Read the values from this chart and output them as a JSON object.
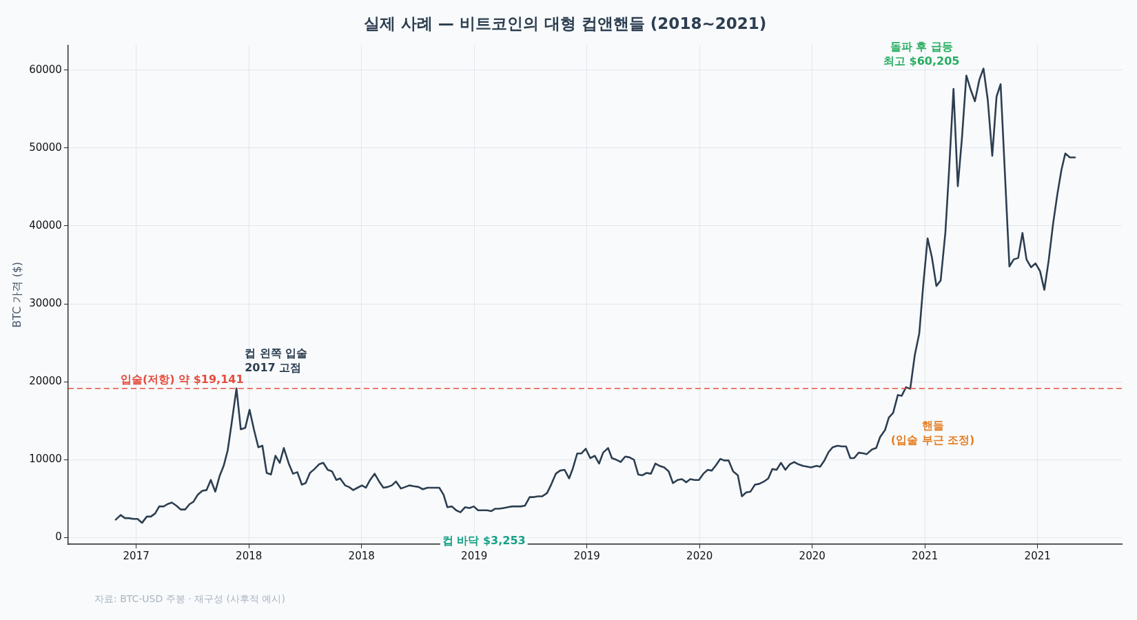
{
  "chart_data": {
    "type": "line",
    "title": "실제 사례 — 비트코인의 대형 컵앤핸들 (2018~2021)",
    "ylabel": "BTC 가격 ($)",
    "x": [
      2016.909,
      2016.931,
      2016.95,
      2016.967,
      2016.987,
      2017.006,
      2017.026,
      2017.047,
      2017.065,
      2017.084,
      2017.102,
      2017.122,
      2017.139,
      2017.158,
      2017.178,
      2017.198,
      2017.217,
      2017.237,
      2017.254,
      2017.273,
      2017.293,
      2017.312,
      2017.331,
      2017.351,
      2017.37,
      2017.388,
      2017.406,
      2017.425,
      2017.445,
      2017.464,
      2017.484,
      2017.503,
      2017.523,
      2017.542,
      2017.56,
      2017.579,
      2017.598,
      2017.618,
      2017.637,
      2017.655,
      2017.677,
      2017.696,
      2017.715,
      2017.735,
      2017.752,
      2017.771,
      2017.791,
      2017.811,
      2017.83,
      2017.85,
      2017.869,
      2017.888,
      2017.905,
      2017.927,
      2017.944,
      2017.963,
      2017.982,
      2018.002,
      2018.019,
      2018.038,
      2018.058,
      2018.078,
      2018.097,
      2018.116,
      2018.134,
      2018.153,
      2018.175,
      2018.194,
      2018.212,
      2018.231,
      2018.253,
      2018.272,
      2018.292,
      2018.308,
      2018.327,
      2018.345,
      2018.364,
      2018.381,
      2018.401,
      2018.42,
      2018.439,
      2018.459,
      2018.479,
      2018.498,
      2018.517,
      2018.537,
      2018.557,
      2018.576,
      2018.592,
      2018.61,
      2018.63,
      2018.649,
      2018.668,
      2018.688,
      2018.707,
      2018.725,
      2018.746,
      2018.764,
      2018.783,
      2018.802,
      2018.823,
      2018.843,
      2018.862,
      2018.881,
      2018.901,
      2018.921,
      2018.938,
      2018.957,
      2018.976,
      2018.995,
      2019.015,
      2019.035,
      2019.054,
      2019.072,
      2019.094,
      2019.111,
      2019.13,
      2019.15,
      2019.17,
      2019.189,
      2019.209,
      2019.228,
      2019.246,
      2019.265,
      2019.284,
      2019.304,
      2019.323,
      2019.343,
      2019.363,
      2019.382,
      2019.403,
      2019.422,
      2019.441,
      2019.459,
      2019.478,
      2019.497,
      2019.517,
      2019.536,
      2019.554,
      2019.573,
      2019.592,
      2019.61,
      2019.629,
      2019.649,
      2019.67,
      2019.688,
      2019.707,
      2019.726,
      2019.746,
      2019.765,
      2019.786,
      2019.805,
      2019.823,
      2019.842,
      2019.861,
      2019.881,
      2019.9,
      2019.92,
      2019.939,
      2019.959,
      2019.979,
      2019.995,
      2020.019,
      2020.035,
      2020.054,
      2020.073,
      2020.091,
      2020.113,
      2020.13,
      2020.15,
      2020.169,
      2020.186,
      2020.206,
      2020.23,
      2020.241,
      2020.265,
      2020.284,
      2020.301,
      2020.323,
      2020.34,
      2020.359,
      2020.38,
      2020.397,
      2020.416,
      2020.435,
      2020.455,
      2020.475,
      2020.492,
      2020.512,
      2020.531,
      2020.551,
      2020.57,
      2020.591,
      2020.607,
      2020.627,
      2020.646,
      2020.664,
      2020.684,
      2020.703,
      2020.722,
      2020.742,
      2020.76,
      2020.779,
      2020.799,
      2020.818,
      2020.836,
      2020.875,
      2020.894,
      2020.914,
      2020.933,
      2020.951,
      2020.971,
      2020.991,
      2021.011,
      2021.03,
      2021.049,
      2021.069,
      2021.088,
      2021.106,
      2021.123,
      2021.143,
      2021.166
    ],
    "series": [
      {
        "color": "#2c3e50",
        "values": [
          2300,
          2900,
          2500,
          2500,
          2400,
          2400,
          1900,
          2700,
          2700,
          3100,
          4000,
          4000,
          4300,
          4500,
          4100,
          3600,
          3600,
          4300,
          4600,
          5500,
          6000,
          6100,
          7400,
          5900,
          7900,
          9200,
          11200,
          15000,
          19141,
          13900,
          14100,
          16400,
          13800,
          11600,
          11800,
          8300,
          8100,
          10500,
          9600,
          11500,
          9500,
          8200,
          8400,
          6800,
          7000,
          8300,
          8800,
          9400,
          9600,
          8700,
          8500,
          7400,
          7600,
          6700,
          6500,
          6100,
          6400,
          6700,
          6400,
          7400,
          8200,
          7200,
          6400,
          6500,
          6700,
          7200,
          6300,
          6500,
          6700,
          6600,
          6500,
          6200,
          6400,
          6400,
          6400,
          6400,
          5500,
          3900,
          4000,
          3500,
          3253,
          3900,
          3800,
          4000,
          3500,
          3500,
          3500,
          3400,
          3700,
          3700,
          3800,
          3900,
          4000,
          4000,
          4000,
          4100,
          5200,
          5200,
          5300,
          5300,
          5700,
          6900,
          8200,
          8600,
          8700,
          7600,
          8900,
          10800,
          10800,
          11400,
          10200,
          10500,
          9500,
          10900,
          11500,
          10200,
          10000,
          9700,
          10400,
          10300,
          10000,
          8100,
          8000,
          8300,
          8200,
          9500,
          9200,
          9000,
          8500,
          7000,
          7400,
          7500,
          7100,
          7500,
          7400,
          7400,
          8200,
          8700,
          8600,
          9300,
          10100,
          9900,
          9900,
          8500,
          8000,
          5300,
          5800,
          5900,
          6800,
          6900,
          7200,
          7600,
          8800,
          8700,
          9600,
          8700,
          9400,
          9700,
          9400,
          9200,
          9100,
          9000,
          9200,
          9100,
          9900,
          11000,
          11600,
          11800,
          11700,
          11700,
          10200,
          10200,
          10900,
          10800,
          10700,
          11300,
          11500,
          12900,
          13800,
          15400,
          16000,
          18300,
          18200,
          19300,
          19100,
          23400,
          26200,
          32200,
          38400,
          36000,
          32300,
          33000,
          39200,
          47000,
          57600,
          45100,
          51100,
          59300,
          57500,
          56000,
          58800,
          60205,
          56200,
          49000,
          56600,
          58200,
          34800,
          35700,
          35900,
          39100,
          35700,
          34700,
          35200,
          34200,
          31800,
          35500,
          40300,
          44100,
          47200,
          49300,
          48800,
          48800
        ]
      }
    ],
    "xlim": [
      2016.698,
      2021.374
    ],
    "xticks": [
      {
        "value": 2017,
        "label": "2017"
      },
      {
        "value": 2017.5,
        "label": "2018"
      },
      {
        "value": 2018,
        "label": "2018"
      },
      {
        "value": 2018.5,
        "label": "2019"
      },
      {
        "value": 2019,
        "label": "2019"
      },
      {
        "value": 2019.5,
        "label": "2020"
      },
      {
        "value": 2020,
        "label": "2020"
      },
      {
        "value": 2020.5,
        "label": "2021"
      },
      {
        "value": 2021,
        "label": "2021"
      }
    ],
    "ylim": [
      -850,
      63200
    ],
    "yticks": [
      0,
      10000,
      20000,
      30000,
      40000,
      50000,
      60000
    ],
    "ref_lines": [
      {
        "axis": "y",
        "value": 19141,
        "label": "입술(저항) 약 $19,141",
        "color": "#e74c3c",
        "line_style": "dashed"
      }
    ],
    "annotations": [
      {
        "text": "컵 왼쪽 입술\n2017 고점",
        "x": 2017.445,
        "y": 19141
      },
      {
        "text": "컵 바닥 $3,253",
        "x": 2018.439,
        "y": 3253
      },
      {
        "text": "핸들\n(입술 부근 조정)",
        "x": 2020.241,
        "y": 10720
      },
      {
        "text": "돌파 후 급등\n최고 $60,205",
        "x": 2020.76,
        "y": 60205
      },
      "자료: BTC-USD 주봉 · 재구성 (사후적 예시)"
    ],
    "grid": true,
    "legend": false,
    "marker": "none",
    "line_style": "solid"
  }
}
